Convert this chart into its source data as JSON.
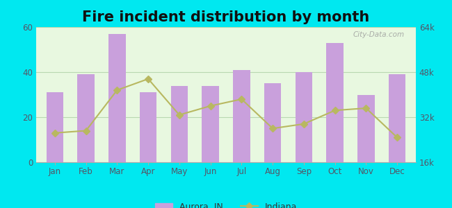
{
  "title": "Fire incident distribution by month",
  "months": [
    "Jan",
    "Feb",
    "Mar",
    "Apr",
    "May",
    "Jun",
    "Jul",
    "Aug",
    "Sep",
    "Oct",
    "Nov",
    "Dec"
  ],
  "aurora_values": [
    31,
    39,
    57,
    31,
    34,
    34,
    41,
    35,
    40,
    53,
    30,
    39
  ],
  "indiana_values": [
    13,
    14,
    32,
    37,
    21,
    25,
    28,
    15,
    17,
    23,
    24,
    11
  ],
  "bar_color": "#c9a0dc",
  "line_color": "#b8b860",
  "line_marker": "D",
  "ylim_left": [
    0,
    60
  ],
  "ylim_right": [
    16000,
    64000
  ],
  "yticks_left": [
    0,
    20,
    40,
    60
  ],
  "yticks_right": [
    "16k",
    "32k",
    "48k",
    "64k"
  ],
  "background_color_top": "#d8f0d0",
  "background_color_bottom": "#f0fff0",
  "outer_background": "#00e8f0",
  "grid_color": "#b8d8b0",
  "title_fontsize": 15,
  "legend_aurora_color": "#c9a0dc",
  "legend_indiana_color": "#b8b860",
  "watermark": "City-Data.com"
}
